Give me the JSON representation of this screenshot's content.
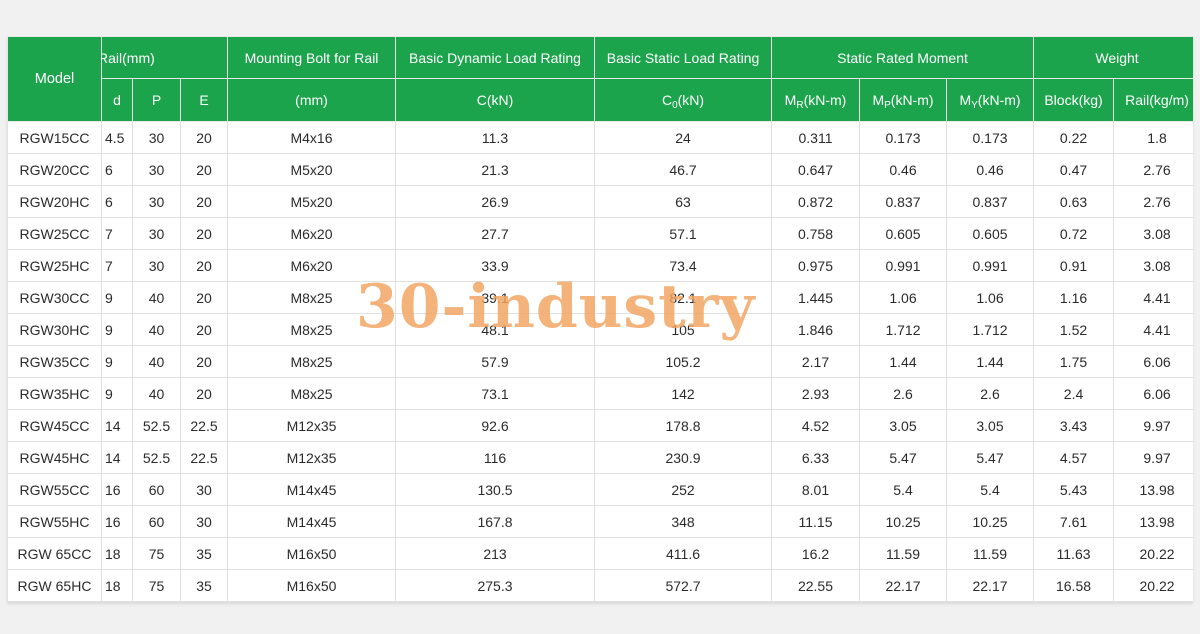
{
  "headers": {
    "model": "Model",
    "rail": "Rail(mm)",
    "rail_d": "d",
    "rail_p": "P",
    "rail_e": "E",
    "bolt": "Mounting Bolt for Rail",
    "bolt_unit": "(mm)",
    "dynamic": "Basic Dynamic Load Rating",
    "dynamic_unit": "C(kN)",
    "static": "Basic Static Load Rating",
    "static_sym": "C",
    "static_sub": "0",
    "static_unit": "(kN)",
    "moment": "Static Rated Moment",
    "mr_sym": "M",
    "mr_sub": "R",
    "mp_sym": "M",
    "mp_sub": "P",
    "my_sym": "M",
    "my_sub": "Y",
    "moment_unit": "(kN-m)",
    "weight": "Weight",
    "block": "Block(kg)",
    "rail_w": "Rail(kg/m)"
  },
  "rows": [
    [
      "RGW15CC",
      "4.5",
      "30",
      "20",
      "M4x16",
      "11.3",
      "24",
      "0.311",
      "0.173",
      "0.173",
      "0.22",
      "1.8"
    ],
    [
      "RGW20CC",
      "6",
      "30",
      "20",
      "M5x20",
      "21.3",
      "46.7",
      "0.647",
      "0.46",
      "0.46",
      "0.47",
      "2.76"
    ],
    [
      "RGW20HC",
      "6",
      "30",
      "20",
      "M5x20",
      "26.9",
      "63",
      "0.872",
      "0.837",
      "0.837",
      "0.63",
      "2.76"
    ],
    [
      "RGW25CC",
      "7",
      "30",
      "20",
      "M6x20",
      "27.7",
      "57.1",
      "0.758",
      "0.605",
      "0.605",
      "0.72",
      "3.08"
    ],
    [
      "RGW25HC",
      "7",
      "30",
      "20",
      "M6x20",
      "33.9",
      "73.4",
      "0.975",
      "0.991",
      "0.991",
      "0.91",
      "3.08"
    ],
    [
      "RGW30CC",
      "9",
      "40",
      "20",
      "M8x25",
      "39.1",
      "82.1",
      "1.445",
      "1.06",
      "1.06",
      "1.16",
      "4.41"
    ],
    [
      "RGW30HC",
      "9",
      "40",
      "20",
      "M8x25",
      "48.1",
      "105",
      "1.846",
      "1.712",
      "1.712",
      "1.52",
      "4.41"
    ],
    [
      "RGW35CC",
      "9",
      "40",
      "20",
      "M8x25",
      "57.9",
      "105.2",
      "2.17",
      "1.44",
      "1.44",
      "1.75",
      "6.06"
    ],
    [
      "RGW35HC",
      "9",
      "40",
      "20",
      "M8x25",
      "73.1",
      "142",
      "2.93",
      "2.6",
      "2.6",
      "2.4",
      "6.06"
    ],
    [
      "RGW45CC",
      "14",
      "52.5",
      "22.5",
      "M12x35",
      "92.6",
      "178.8",
      "4.52",
      "3.05",
      "3.05",
      "3.43",
      "9.97"
    ],
    [
      "RGW45HC",
      "14",
      "52.5",
      "22.5",
      "M12x35",
      "116",
      "230.9",
      "6.33",
      "5.47",
      "5.47",
      "4.57",
      "9.97"
    ],
    [
      "RGW55CC",
      "16",
      "60",
      "30",
      "M14x45",
      "130.5",
      "252",
      "8.01",
      "5.4",
      "5.4",
      "5.43",
      "13.98"
    ],
    [
      "RGW55HC",
      "16",
      "60",
      "30",
      "M14x45",
      "167.8",
      "348",
      "11.15",
      "10.25",
      "10.25",
      "7.61",
      "13.98"
    ],
    [
      "RGW 65CC",
      "18",
      "75",
      "35",
      "M16x50",
      "213",
      "411.6",
      "16.2",
      "11.59",
      "11.59",
      "11.63",
      "20.22"
    ],
    [
      "RGW 65HC",
      "18",
      "75",
      "35",
      "M16x50",
      "275.3",
      "572.7",
      "22.55",
      "22.17",
      "22.17",
      "16.58",
      "20.22"
    ]
  ],
  "watermark": "30-industry",
  "colors": {
    "header_bg": "#1ca44c",
    "header_text": "#ffffff",
    "watermark": "#f1a35f"
  }
}
